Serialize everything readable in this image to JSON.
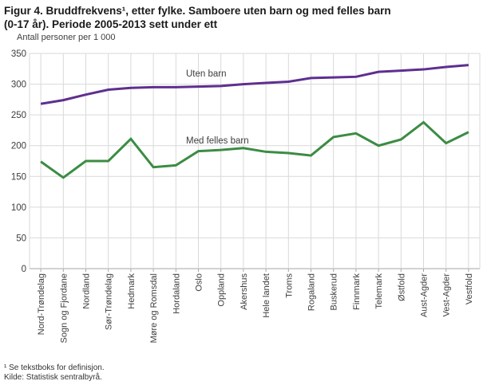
{
  "figure": {
    "title_line1": "Figur 4. Bruddfrekvens¹, etter fylke. Samboere uten barn og med felles barn",
    "title_line2": "(0-17 år). Periode 2005-2013 sett under ett",
    "unit_label": "Antall personer per 1 000",
    "footnote": "¹ Se tekstboks for definisjon.",
    "source": "Kilde: Statistisk sentralbyrå."
  },
  "chart_data": {
    "type": "line",
    "title": "Figur 4. Bruddfrekvens, etter fylke. Samboere uten barn og med felles barn (0-17 år). Periode 2005-2013 sett under ett",
    "ylabel": "Antall personer per 1 000",
    "xlabel": "",
    "ylim": [
      0,
      350
    ],
    "ytick_step": 50,
    "yticks": [
      0,
      50,
      100,
      150,
      200,
      250,
      300,
      350
    ],
    "grid": true,
    "legend_position": "inline-labels",
    "categories": [
      "Nord-Trøndelag",
      "Sogn og Fjordane",
      "Nordland",
      "Sør-Trøndelag",
      "Hedmark",
      "Møre og Romsdal",
      "Hordaland",
      "Oslo",
      "Oppland",
      "Akershus",
      "Hele landet",
      "Troms",
      "Rogaland",
      "Buskerud",
      "Finnmark",
      "Telemark",
      "Østfold",
      "Aust-Agder",
      "Vest-Agder",
      "Vestfold"
    ],
    "series": [
      {
        "name": "Uten barn",
        "color": "#5e2f8f",
        "values": [
          268,
          274,
          283,
          291,
          294,
          295,
          295,
          296,
          297,
          300,
          302,
          304,
          310,
          311,
          312,
          320,
          322,
          324,
          328,
          331
        ]
      },
      {
        "name": "Med felles barn",
        "color": "#3b8c43",
        "values": [
          174,
          148,
          175,
          175,
          211,
          165,
          168,
          191,
          193,
          196,
          190,
          188,
          184,
          214,
          220,
          200,
          210,
          238,
          204,
          222
        ]
      }
    ]
  },
  "style": {
    "grid_color": "#d9d9d9",
    "axis_line_color": "#a6a6a6",
    "tick_text_color": "#3d3d3d",
    "label_text_color": "#3d3d3d",
    "title_color": "#1a1a1a"
  }
}
